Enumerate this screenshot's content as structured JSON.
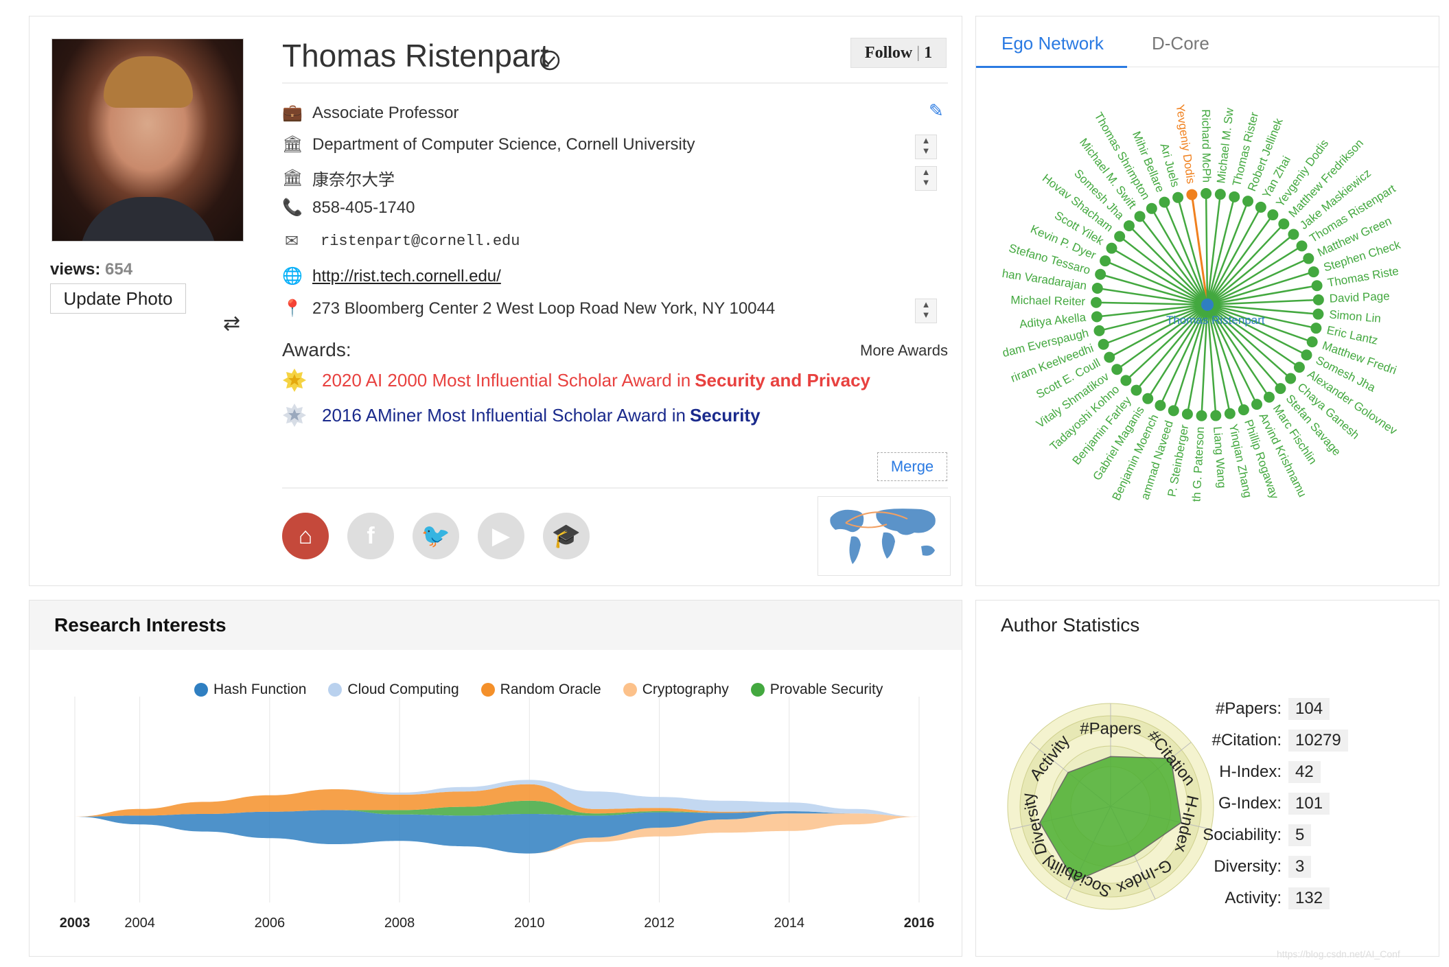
{
  "profile": {
    "name": "Thomas Ristenpart",
    "views_label": "views:",
    "views_count": "654",
    "update_photo": "Update Photo",
    "follow_label": "Follow",
    "follow_count": "1",
    "position": "Associate Professor",
    "affiliation_en": "Department of Computer Science, Cornell University",
    "affiliation_zh": "康奈尔大学",
    "phone": "858-405-1740",
    "email": "ristenpart@cornell.edu",
    "homepage": "http://rist.tech.cornell.edu/",
    "address": "273 Bloomberg Center  2 West Loop Road New York, NY 10044",
    "awards_heading": "Awards:",
    "more_awards": "More Awards",
    "awards": [
      {
        "text": "2020 AI 2000 Most Influential Scholar Award in ",
        "field": "Security and Privacy",
        "color": "#e8413f"
      },
      {
        "text": "2016 AMiner Most Influential Scholar Award in ",
        "field": "Security",
        "color": "#1a2a8c"
      }
    ],
    "merge": "Merge",
    "social": [
      "home-icon",
      "facebook-icon",
      "twitter-icon",
      "youtube-icon",
      "scholar-icon"
    ]
  },
  "ego": {
    "tabs": [
      "Ego Network",
      "D-Core"
    ],
    "center": "Thomas Ristenpart",
    "nodes": [
      "Yevgeniy Dodis",
      "Richard McPh",
      "Michael M. Sw",
      "Thomas Rister",
      "Robert Jellinek",
      "Yan Zhai",
      "Yevgeniy Dodis",
      "Matthew Fredrikson",
      "Jake Maskiewicz",
      "Thomas Ristenpart",
      "Matthew Green",
      "Stephen Check",
      "Thomas Riste",
      "David Page",
      "Simon Lin",
      "Eric Lantz",
      "Matthew Fredri",
      "Somesh Jha",
      "Alexander Golovnev",
      "Chaya Ganesh",
      "Stefan Savage",
      "Marc Fischlin",
      "Arvind Krishnamu",
      "Phillip Rogaway",
      "Yinqian Zhang",
      "Liang Wang",
      "th G. Paterson",
      "P. Steinberger",
      "ammad Naveed",
      "Benjamin Moench",
      "Gabriel Maganis",
      "Benjamin Farley",
      "Tadayoshi Kohno",
      "Vitaly Shmatikov",
      "Scott E. Coull",
      "riram Keelveedhi",
      "dam Everspaugh",
      "Aditya Akella",
      "Michael Reiter",
      "han Varadarajan",
      "Stefano Tessaro",
      "Kevin P. Dyer",
      "Scott Yilek",
      "Hovav Shacham",
      "Somesh Jha",
      "Michael M. Swift",
      "Thomas Shrimpton",
      "Mihir Bellare",
      "Ari Juels"
    ]
  },
  "research": {
    "title": "Research Interests",
    "chart_data": {
      "type": "area",
      "subtype": "themeriver",
      "x": [
        2003,
        2004,
        2005,
        2006,
        2007,
        2008,
        2009,
        2010,
        2011,
        2012,
        2013,
        2014,
        2015,
        2016
      ],
      "x_ticks": [
        "2003",
        "2004",
        "2006",
        "2008",
        "2010",
        "2012",
        "2014",
        "2016"
      ],
      "series": [
        {
          "name": "Hash Function",
          "color": "#2f7fc1",
          "values": [
            0,
            8,
            16,
            24,
            31,
            24,
            28,
            36,
            20,
            14,
            6,
            2,
            0,
            0
          ]
        },
        {
          "name": "Cloud Computing",
          "color": "#b9d1ee",
          "values": [
            0,
            0,
            0,
            0,
            0,
            2,
            4,
            4,
            16,
            10,
            10,
            8,
            4,
            0
          ]
        },
        {
          "name": "Random Oracle",
          "color": "#f4902a",
          "values": [
            0,
            6,
            11,
            15,
            19,
            14,
            14,
            15,
            4,
            3,
            1,
            0,
            0,
            0
          ]
        },
        {
          "name": "Cryptography",
          "color": "#fcc18a",
          "values": [
            0,
            0,
            0,
            0,
            0,
            0,
            0,
            0,
            4,
            8,
            12,
            16,
            10,
            0
          ]
        },
        {
          "name": "Provable Security",
          "color": "#43a83f",
          "values": [
            0,
            0,
            0,
            0,
            0,
            4,
            8,
            12,
            2,
            1,
            0,
            0,
            0,
            0
          ]
        }
      ]
    }
  },
  "stats": {
    "title": "Author Statistics",
    "items": [
      {
        "label": "#Papers:",
        "value": "104"
      },
      {
        "label": "#Citation:",
        "value": "10279"
      },
      {
        "label": "H-Index:",
        "value": "42"
      },
      {
        "label": "G-Index:",
        "value": "101"
      },
      {
        "label": "Sociability:",
        "value": "5"
      },
      {
        "label": "Diversity:",
        "value": "3"
      },
      {
        "label": "Activity:",
        "value": "132"
      }
    ],
    "radar": {
      "axes": [
        "#Papers",
        "#Citation",
        "H-Index",
        "G-Index",
        "Sociability",
        "Diversity",
        "Activity"
      ],
      "levels": [
        0.55,
        0.85,
        0.8,
        0.6,
        0.92,
        0.8,
        0.6
      ]
    }
  },
  "watermark": "https://blog.csdn.net/AI_Conf"
}
